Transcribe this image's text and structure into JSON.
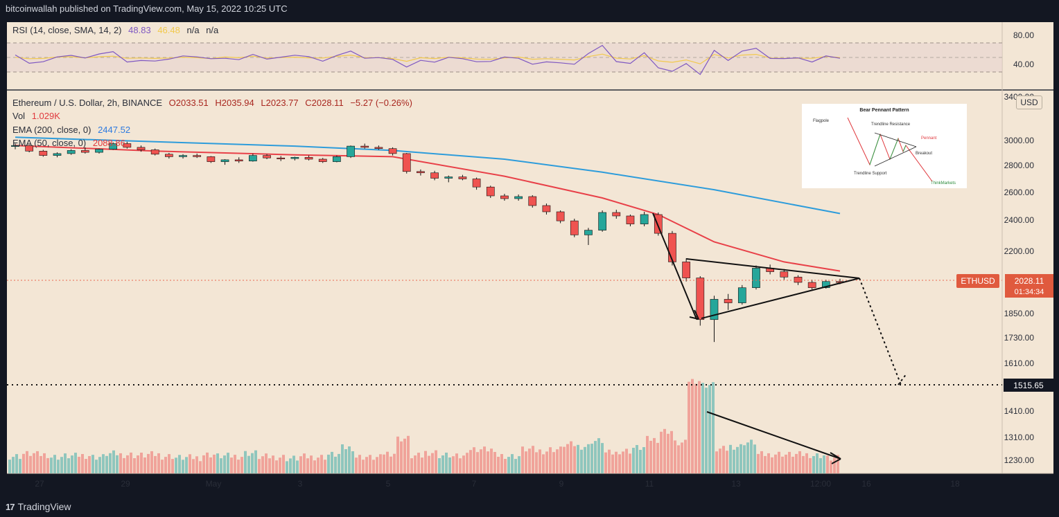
{
  "header": {
    "published": "bitcoinwallah published on TradingView.com, May 15, 2022 10:25 UTC"
  },
  "footer": {
    "brand": "TradingView",
    "logo_mark": "17"
  },
  "colors": {
    "background": "#f3e6d5",
    "up": "#26a69a",
    "down": "#ef5350",
    "ema200": "#2d9cdb",
    "ema50": "#e84048",
    "rsi": "#7e57c2",
    "rsi_sma": "#f2c94c"
  },
  "rsi_legend": {
    "name": "RSI (14, close, SMA, 14, 2)",
    "value": "48.83",
    "sma": "46.48",
    "na1": "n/a",
    "na2": "n/a"
  },
  "main_legend": {
    "symbol": "Ethereum / U.S. Dollar, 2h, BINANCE",
    "o": "O2033.51",
    "h": "H2035.94",
    "l": "L2023.77",
    "c": "C2028.11",
    "change": "−5.27 (−0.26%)",
    "vol_label": "Vol",
    "vol_value": "1.029K",
    "ema200_label": "EMA (200, close, 0)",
    "ema200_value": "2447.52",
    "ema50_label": "EMA (50, close, 0)",
    "ema50_value": "2088.86"
  },
  "price_tag": {
    "symbol": "ETHUSD",
    "price": "2028.11",
    "timer": "01:34:34"
  },
  "target_tag": "1515.65",
  "usd_button": "USD",
  "inset": {
    "title": "Bear Pennant Pattern",
    "flagpole": "Flagpole",
    "resistance": "Trendline Resistance",
    "pennant": "Pennant",
    "breakout": "Breakout",
    "support": "Trendline Support",
    "brand": "ThinkMarkets"
  },
  "chart_data": {
    "type": "candlestick",
    "symbol": "ETHUSD",
    "y_ticks": [
      "3400.00",
      "3000.00",
      "2800.00",
      "2600.00",
      "2400.00",
      "2200.00",
      "1850.00",
      "1730.00",
      "1610.00",
      "1410.00",
      "1310.00",
      "1230.00"
    ],
    "rsi_ticks": [
      "80.00",
      "40.00"
    ],
    "x_ticks": [
      "27",
      "29",
      "May",
      "3",
      "5",
      "7",
      "9",
      "11",
      "13",
      "12:00",
      "16",
      "18"
    ],
    "ohlc": [
      [
        2955,
        2975,
        2930,
        2960
      ],
      [
        2960,
        2965,
        2905,
        2915
      ],
      [
        2915,
        2925,
        2870,
        2880
      ],
      [
        2880,
        2905,
        2865,
        2895
      ],
      [
        2895,
        2930,
        2885,
        2920
      ],
      [
        2920,
        2945,
        2895,
        2905
      ],
      [
        2905,
        2935,
        2895,
        2930
      ],
      [
        2930,
        2985,
        2925,
        2975
      ],
      [
        2975,
        2990,
        2935,
        2945
      ],
      [
        2945,
        2960,
        2910,
        2925
      ],
      [
        2925,
        2935,
        2880,
        2890
      ],
      [
        2890,
        2900,
        2855,
        2870
      ],
      [
        2870,
        2890,
        2855,
        2880
      ],
      [
        2880,
        2895,
        2860,
        2870
      ],
      [
        2870,
        2875,
        2820,
        2830
      ],
      [
        2830,
        2850,
        2805,
        2845
      ],
      [
        2845,
        2865,
        2820,
        2835
      ],
      [
        2835,
        2895,
        2830,
        2880
      ],
      [
        2880,
        2890,
        2850,
        2860
      ],
      [
        2860,
        2875,
        2835,
        2855
      ],
      [
        2855,
        2870,
        2840,
        2865
      ],
      [
        2865,
        2880,
        2840,
        2850
      ],
      [
        2850,
        2860,
        2820,
        2830
      ],
      [
        2830,
        2880,
        2825,
        2870
      ],
      [
        2870,
        2960,
        2860,
        2955
      ],
      [
        2955,
        2975,
        2935,
        2945
      ],
      [
        2945,
        2960,
        2925,
        2935
      ],
      [
        2935,
        2945,
        2880,
        2895
      ],
      [
        2895,
        2900,
        2740,
        2755
      ],
      [
        2755,
        2770,
        2725,
        2745
      ],
      [
        2745,
        2760,
        2690,
        2705
      ],
      [
        2705,
        2725,
        2675,
        2715
      ],
      [
        2715,
        2730,
        2690,
        2700
      ],
      [
        2700,
        2710,
        2620,
        2640
      ],
      [
        2640,
        2650,
        2560,
        2575
      ],
      [
        2575,
        2590,
        2540,
        2555
      ],
      [
        2555,
        2585,
        2540,
        2570
      ],
      [
        2570,
        2580,
        2490,
        2505
      ],
      [
        2505,
        2520,
        2440,
        2460
      ],
      [
        2460,
        2470,
        2380,
        2395
      ],
      [
        2395,
        2410,
        2290,
        2305
      ],
      [
        2305,
        2350,
        2240,
        2335
      ],
      [
        2335,
        2470,
        2325,
        2455
      ],
      [
        2455,
        2475,
        2410,
        2430
      ],
      [
        2430,
        2440,
        2360,
        2375
      ],
      [
        2375,
        2460,
        2360,
        2440
      ],
      [
        2440,
        2455,
        2300,
        2315
      ],
      [
        2315,
        2330,
        2120,
        2140
      ],
      [
        2140,
        2160,
        2030,
        2050
      ],
      [
        2050,
        2060,
        1790,
        1820
      ],
      [
        1820,
        1950,
        1710,
        1930
      ],
      [
        1930,
        1960,
        1870,
        1910
      ],
      [
        1910,
        2010,
        1900,
        1995
      ],
      [
        1995,
        2120,
        1985,
        2105
      ],
      [
        2105,
        2125,
        2070,
        2085
      ],
      [
        2085,
        2100,
        2040,
        2055
      ],
      [
        2055,
        2065,
        2010,
        2025
      ],
      [
        2025,
        2040,
        1985,
        1995
      ],
      [
        1995,
        2040,
        1990,
        2030
      ],
      [
        2030,
        2045,
        2015,
        2028
      ]
    ],
    "ema200": [
      [
        0,
        3030
      ],
      [
        10,
        2990
      ],
      [
        20,
        2955
      ],
      [
        27,
        2920
      ],
      [
        35,
        2850
      ],
      [
        42,
        2750
      ],
      [
        50,
        2620
      ],
      [
        59,
        2447.52
      ]
    ],
    "ema50": [
      [
        0,
        2960
      ],
      [
        10,
        2915
      ],
      [
        20,
        2885
      ],
      [
        27,
        2870
      ],
      [
        35,
        2720
      ],
      [
        42,
        2560
      ],
      [
        46,
        2440
      ],
      [
        50,
        2260
      ],
      [
        55,
        2140
      ],
      [
        59,
        2088.86
      ]
    ],
    "annotations": {
      "target": 1515.65,
      "current": 2028.11
    }
  }
}
